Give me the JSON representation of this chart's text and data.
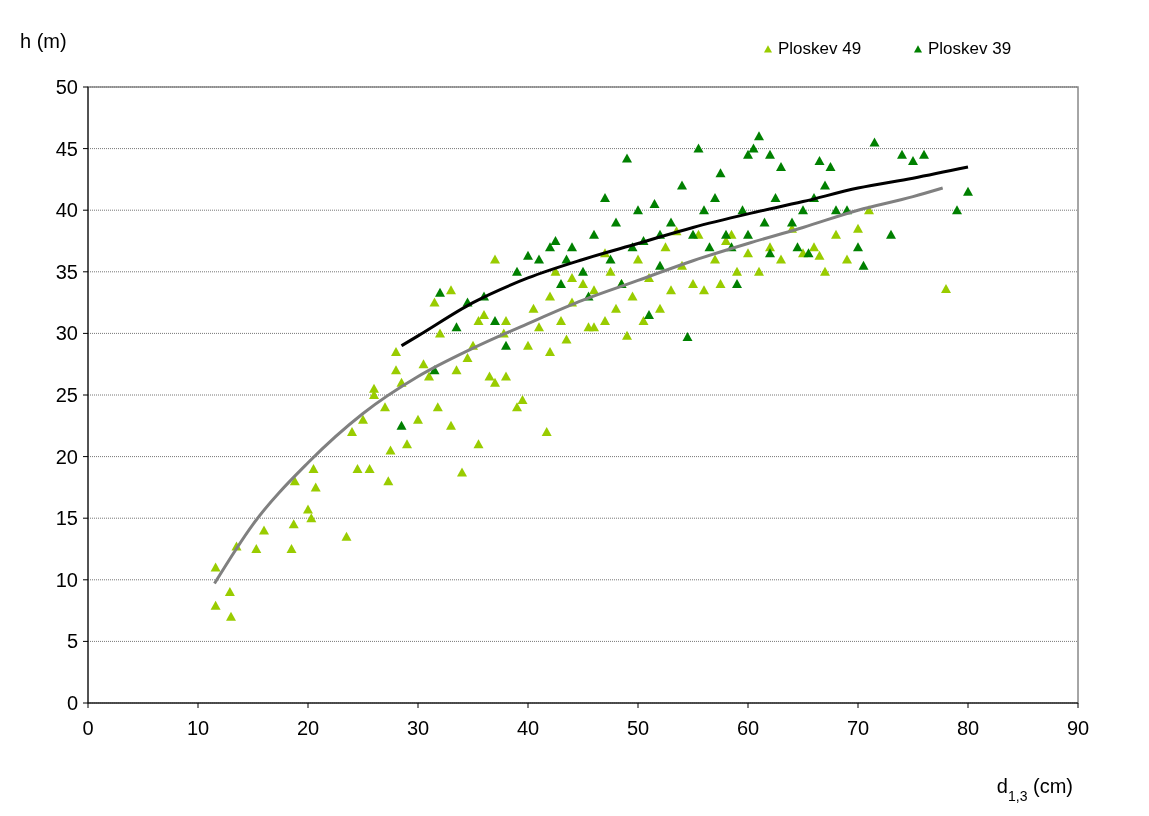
{
  "chart_data": {
    "type": "scatter",
    "ylabel": "h (m)",
    "xlabel": "d$_{1,3}$ (cm)",
    "xlim": [
      0,
      90
    ],
    "xticks": [
      0,
      10,
      20,
      30,
      40,
      50,
      60,
      70,
      80,
      90
    ],
    "ylim": [
      0,
      50
    ],
    "yticks": [
      0,
      5,
      10,
      15,
      20,
      25,
      30,
      35,
      40,
      45,
      50
    ],
    "grid": "y",
    "legend": "top right",
    "series": [
      {
        "name": "Ploskev 49",
        "marker": "triangle",
        "color": "#99cc00",
        "x": [
          11.6,
          11.6,
          12.9,
          13,
          13.5,
          15.3,
          16,
          18.5,
          18.7,
          18.8,
          20,
          20.3,
          20.5,
          20.7,
          23.5,
          24,
          24.5,
          25,
          25.6,
          26,
          27,
          27.3,
          27.5,
          28,
          28,
          28.5,
          29,
          30,
          31,
          31.5,
          32,
          31.8,
          33,
          33.5,
          34,
          34.5,
          35,
          35.5,
          36,
          36.5,
          37,
          37,
          37.8,
          38,
          39,
          39.5,
          40,
          41,
          41.7,
          42,
          42.5,
          43,
          43.5,
          44,
          45,
          45.5,
          46,
          47,
          47.5,
          48,
          48.5,
          49,
          49.5,
          50,
          51,
          52,
          52.5,
          53,
          54,
          55,
          55.5,
          56,
          57,
          57.5,
          58,
          59,
          60,
          61,
          62,
          63,
          64,
          65,
          66,
          67,
          68,
          69,
          70,
          71,
          78,
          38,
          40.5,
          44,
          47,
          50.5,
          53.5,
          58.5,
          66.5,
          30.5,
          26,
          33,
          35.5,
          42,
          46
        ],
        "values": [
          11,
          7.9,
          9,
          7,
          12.7,
          12.5,
          14,
          12.5,
          14.5,
          18,
          15.7,
          15,
          19,
          17.5,
          13.5,
          22,
          19,
          23,
          19,
          25,
          24,
          18,
          20.5,
          27,
          28.5,
          26,
          21,
          23,
          26.5,
          32.5,
          30,
          24,
          22.5,
          27,
          18.7,
          28,
          29,
          21,
          31.5,
          26.5,
          26,
          36,
          30,
          26.5,
          24,
          24.6,
          29,
          30.5,
          22,
          33,
          35,
          31,
          29.5,
          32.5,
          34,
          30.5,
          33.5,
          31,
          35,
          32,
          34,
          29.8,
          33,
          36,
          34.5,
          32,
          37,
          33.5,
          35.5,
          34,
          38,
          33.5,
          36,
          34,
          37.5,
          35,
          36.5,
          35,
          37,
          36,
          38.5,
          36.5,
          37,
          35,
          38,
          36,
          38.5,
          40,
          33.6,
          31,
          32,
          34.5,
          36.5,
          31,
          38.3,
          38,
          36.3,
          27.5,
          25.5,
          33.5,
          31,
          28.5,
          30.5
        ]
      },
      {
        "name": "Ploskev 39",
        "marker": "triangle",
        "color": "#008000",
        "x": [
          28.5,
          31.5,
          32,
          33.5,
          34.5,
          36,
          37,
          38,
          39,
          40,
          41,
          42,
          42.5,
          43.5,
          44,
          45,
          46,
          47,
          47.5,
          48,
          49,
          49.5,
          50,
          51,
          51.5,
          52,
          53,
          54,
          54.5,
          55,
          55.5,
          56,
          57,
          57.5,
          58,
          58.5,
          59,
          59.5,
          60,
          60.5,
          61,
          61.5,
          62,
          62.5,
          63,
          64,
          64.5,
          65,
          65.5,
          66,
          66.5,
          67,
          67.5,
          68,
          69,
          70,
          70.5,
          71.5,
          73,
          74,
          75,
          76,
          79,
          80,
          52,
          48.5,
          45.5,
          56.5,
          50.5,
          62,
          60,
          43
        ],
        "values": [
          22.5,
          27,
          33.3,
          30.5,
          32.5,
          33,
          31,
          29,
          35,
          36.3,
          36,
          37,
          37.5,
          36,
          37,
          35,
          38,
          41,
          36,
          39,
          44.2,
          37,
          40,
          31.5,
          40.5,
          38,
          39,
          42,
          29.7,
          38,
          45,
          40,
          41,
          43,
          38,
          37,
          34,
          40,
          44.5,
          45,
          46,
          39,
          44.5,
          41,
          43.5,
          39,
          37,
          40,
          36.5,
          41,
          44,
          42,
          43.5,
          40,
          40,
          37,
          35.5,
          45.5,
          38,
          44.5,
          44,
          44.5,
          40,
          41.5,
          35.5,
          34,
          33,
          37,
          37.5,
          36.5,
          38,
          34
        ]
      },
      {
        "type": "line",
        "marker": "none",
        "color": "#000000",
        "x": [
          28.5,
          30,
          35,
          40,
          45,
          50,
          55,
          60,
          65,
          70,
          75,
          80
        ],
        "values": [
          29,
          29.8,
          32.5,
          34.5,
          36,
          37.3,
          38.6,
          39.7,
          40.7,
          41.8,
          42.6,
          43.5
        ]
      },
      {
        "type": "line",
        "marker": "none",
        "color": "#808080",
        "x": [
          11.5,
          15,
          20,
          25,
          30,
          35,
          40,
          45,
          50,
          55,
          60,
          65,
          70,
          75,
          77.7
        ],
        "values": [
          9.7,
          14.5,
          19.5,
          23.5,
          26.5,
          28.8,
          30.8,
          32.7,
          34.3,
          35.9,
          37.3,
          38.6,
          40,
          41.1,
          41.8
        ]
      }
    ]
  }
}
